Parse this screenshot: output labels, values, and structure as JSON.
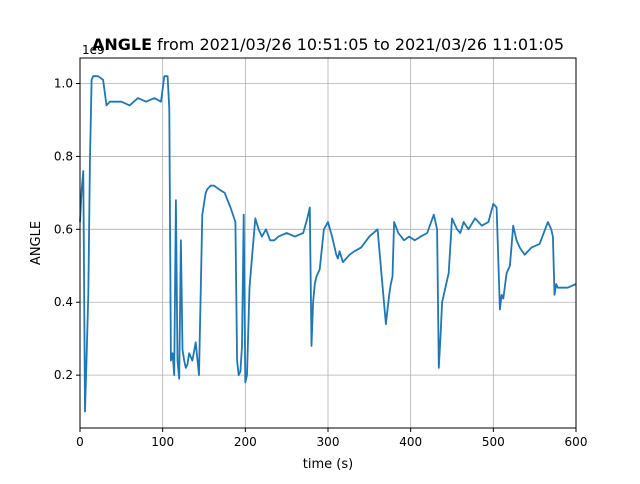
{
  "chart_data": {
    "type": "line",
    "title_bold": "ANGLE",
    "title_rest": " from 2021/03/26 10:51:05 to 2021/03/26 11:01:05",
    "xlabel": "time (s)",
    "ylabel": "ANGLE",
    "offset_label": "1e9",
    "xlim": [
      0,
      600
    ],
    "ylim": [
      0.055,
      1.07
    ],
    "x_ticks": [
      0,
      100,
      200,
      300,
      400,
      500,
      600
    ],
    "x_tick_labels": [
      "0",
      "100",
      "200",
      "300",
      "400",
      "500",
      "600"
    ],
    "y_ticks": [
      0.2,
      0.4,
      0.6,
      0.8,
      1.0
    ],
    "y_tick_labels": [
      "0.2",
      "0.4",
      "0.6",
      "0.8",
      "1.0"
    ],
    "grid": true,
    "line_color": "#1f77b4",
    "series": [
      {
        "name": "",
        "x": [
          0,
          2,
          4,
          6,
          8,
          10,
          12,
          14,
          16,
          18,
          22,
          28,
          32,
          36,
          40,
          50,
          60,
          70,
          80,
          90,
          98,
          102,
          106,
          108,
          110,
          112,
          114,
          116,
          118,
          120,
          122,
          124,
          126,
          128,
          130,
          132,
          136,
          140,
          144,
          148,
          152,
          154,
          158,
          162,
          168,
          175,
          182,
          188,
          190,
          192,
          194,
          196,
          198,
          200,
          202,
          205,
          208,
          212,
          216,
          220,
          225,
          230,
          235,
          240,
          250,
          260,
          270,
          275,
          278,
          280,
          282,
          284,
          286,
          290,
          295,
          300,
          305,
          310,
          312,
          314,
          318,
          322,
          326,
          332,
          340,
          350,
          360,
          365,
          370,
          372,
          374,
          376,
          378,
          380,
          385,
          392,
          398,
          405,
          412,
          420,
          428,
          432,
          434,
          436,
          438,
          442,
          446,
          450,
          456,
          460,
          464,
          470,
          478,
          486,
          494,
          500,
          504,
          508,
          510,
          512,
          516,
          520,
          524,
          528,
          532,
          538,
          546,
          556,
          566,
          570,
          572,
          574,
          576,
          578,
          580,
          590,
          600
        ],
        "values": [
          0.62,
          0.71,
          0.76,
          0.1,
          0.25,
          0.42,
          0.78,
          1.01,
          1.02,
          1.02,
          1.02,
          1.01,
          0.94,
          0.95,
          0.95,
          0.95,
          0.94,
          0.96,
          0.95,
          0.96,
          0.95,
          1.02,
          1.02,
          0.93,
          0.24,
          0.26,
          0.2,
          0.68,
          0.24,
          0.19,
          0.57,
          0.27,
          0.24,
          0.22,
          0.23,
          0.26,
          0.24,
          0.29,
          0.2,
          0.64,
          0.7,
          0.71,
          0.72,
          0.72,
          0.71,
          0.7,
          0.66,
          0.62,
          0.24,
          0.2,
          0.21,
          0.28,
          0.64,
          0.18,
          0.2,
          0.44,
          0.52,
          0.63,
          0.6,
          0.58,
          0.6,
          0.57,
          0.57,
          0.58,
          0.59,
          0.58,
          0.59,
          0.63,
          0.66,
          0.28,
          0.4,
          0.45,
          0.47,
          0.49,
          0.6,
          0.62,
          0.58,
          0.53,
          0.52,
          0.54,
          0.51,
          0.52,
          0.53,
          0.54,
          0.55,
          0.58,
          0.6,
          0.47,
          0.34,
          0.38,
          0.42,
          0.45,
          0.47,
          0.62,
          0.59,
          0.57,
          0.58,
          0.57,
          0.58,
          0.59,
          0.64,
          0.6,
          0.22,
          0.3,
          0.4,
          0.44,
          0.48,
          0.63,
          0.6,
          0.59,
          0.62,
          0.6,
          0.63,
          0.61,
          0.62,
          0.67,
          0.66,
          0.38,
          0.42,
          0.41,
          0.48,
          0.5,
          0.61,
          0.57,
          0.55,
          0.53,
          0.55,
          0.56,
          0.62,
          0.6,
          0.58,
          0.42,
          0.45,
          0.44,
          0.44,
          0.44,
          0.45
        ]
      }
    ]
  }
}
